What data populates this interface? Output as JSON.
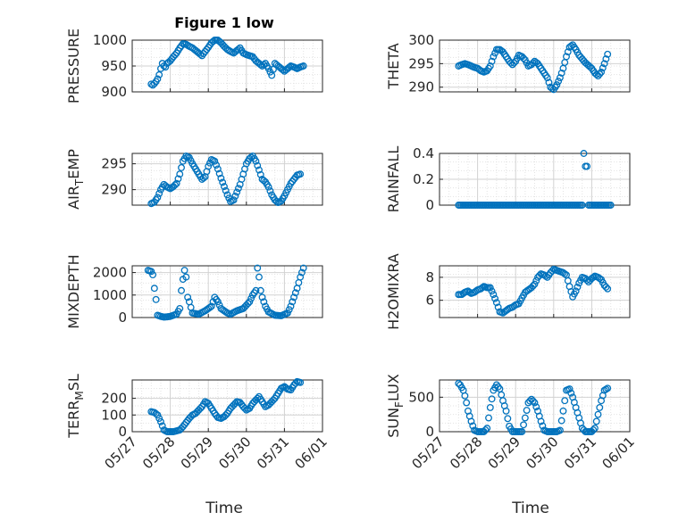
{
  "figure_title": "Figure 1 low",
  "xlabel": "Time",
  "x_ticks": [
    "05/27",
    "05/28",
    "05/29",
    "05/30",
    "05/31",
    "06/01"
  ],
  "marker_color": "#0072BD",
  "chart_data": [
    {
      "type": "scatter",
      "ylabel": "PRESSURE",
      "ylim": [
        900,
        1000
      ],
      "yticks": [
        "900",
        "950",
        "1000"
      ],
      "grid": "on",
      "xlim": [
        "05/27",
        "06/01"
      ],
      "x": [
        "05/27 12:00",
        "05/27 13:00",
        "05/27 14:00",
        "05/27 15:00",
        "05/27 16:00",
        "05/27 17:00",
        "05/27 18:00",
        "05/27 19:00",
        "05/27 20:00",
        "05/27 21:00",
        "05/27 22:00",
        "05/28 00:00",
        "05/28 02:00",
        "05/28 04:00",
        "05/28 06:00",
        "05/28 08:00",
        "05/28 10:00",
        "05/28 12:00",
        "05/28 14:00",
        "05/28 16:00",
        "05/28 18:00",
        "05/28 20:00",
        "05/28 22:00",
        "05/29 00:00",
        "05/29 02:00",
        "05/29 04:00",
        "05/29 06:00",
        "05/29 08:00",
        "05/29 10:00",
        "05/29 12:00",
        "05/29 14:00",
        "05/29 16:00",
        "05/29 18:00",
        "05/29 20:00",
        "05/29 22:00",
        "05/30 00:00",
        "05/30 02:00",
        "05/30 04:00",
        "05/30 06:00",
        "05/30 08:00",
        "05/30 10:00",
        "05/30 12:00",
        "05/30 14:00",
        "05/30 16:00",
        "05/30 18:00",
        "05/30 20:00",
        "05/30 22:00",
        "05/31 00:00",
        "05/31 02:00",
        "05/31 04:00",
        "05/31 06:00",
        "05/31 08:00",
        "05/31 10:00",
        "05/31 12:00"
      ],
      "y": [
        915,
        913,
        916,
        920,
        925,
        933,
        945,
        955,
        950,
        948,
        955,
        960,
        968,
        975,
        985,
        993,
        992,
        988,
        985,
        980,
        975,
        970,
        978,
        986,
        995,
        1000,
        1000,
        995,
        988,
        982,
        978,
        975,
        980,
        985,
        975,
        972,
        970,
        968,
        960,
        955,
        950,
        955,
        945,
        932,
        955,
        950,
        945,
        940,
        945,
        950,
        948,
        945,
        948,
        950
      ]
    },
    {
      "type": "scatter",
      "ylabel": "THETA",
      "ylim": [
        289,
        300
      ],
      "yticks": [
        "290",
        "295",
        "300"
      ],
      "grid": "on",
      "xlim": [
        "05/27",
        "06/01"
      ],
      "x": [
        "05/27 12:00",
        "05/27 14:00",
        "05/27 16:00",
        "05/27 18:00",
        "05/27 20:00",
        "05/27 22:00",
        "05/28 00:00",
        "05/28 02:00",
        "05/28 04:00",
        "05/28 06:00",
        "05/28 08:00",
        "05/28 10:00",
        "05/28 12:00",
        "05/28 14:00",
        "05/28 16:00",
        "05/28 18:00",
        "05/28 20:00",
        "05/28 22:00",
        "05/29 00:00",
        "05/29 02:00",
        "05/29 04:00",
        "05/29 06:00",
        "05/29 08:00",
        "05/29 10:00",
        "05/29 12:00",
        "05/29 14:00",
        "05/29 16:00",
        "05/29 18:00",
        "05/29 20:00",
        "05/29 22:00",
        "05/30 00:00",
        "05/30 02:00",
        "05/30 04:00",
        "05/30 06:00",
        "05/30 08:00",
        "05/30 10:00",
        "05/30 12:00",
        "05/30 14:00",
        "05/30 16:00",
        "05/30 18:00",
        "05/30 20:00",
        "05/30 22:00",
        "05/31 00:00",
        "05/31 02:00",
        "05/31 04:00",
        "05/31 06:00",
        "05/31 08:00",
        "05/31 10:00"
      ],
      "y": [
        294.5,
        294.8,
        295,
        294.8,
        294.5,
        294.2,
        294,
        293.5,
        293.2,
        293.5,
        294.5,
        296.5,
        298,
        298,
        297.5,
        296.5,
        295.5,
        294.8,
        295.5,
        296.8,
        296.5,
        295.8,
        294.5,
        294.8,
        295.5,
        295,
        294,
        293,
        292,
        290,
        289.5,
        290.5,
        292,
        294,
        296.5,
        298.5,
        299,
        298,
        296.8,
        296,
        295.2,
        294.6,
        294,
        293,
        292.4,
        293.2,
        295,
        297
      ]
    },
    {
      "type": "scatter",
      "ylabel": "AIR_TEMP",
      "ylim": [
        287,
        297
      ],
      "yticks": [
        "290",
        "295"
      ],
      "grid": "on",
      "xlim": [
        "05/27",
        "06/01"
      ],
      "x": [
        "05/27 12:00",
        "05/27 14:00",
        "05/27 16:00",
        "05/27 18:00",
        "05/27 20:00",
        "05/27 22:00",
        "05/28 00:00",
        "05/28 02:00",
        "05/28 04:00",
        "05/28 06:00",
        "05/28 08:00",
        "05/28 10:00",
        "05/28 12:00",
        "05/28 14:00",
        "05/28 16:00",
        "05/28 18:00",
        "05/28 20:00",
        "05/28 22:00",
        "05/29 00:00",
        "05/29 02:00",
        "05/29 04:00",
        "05/29 06:00",
        "05/29 08:00",
        "05/29 10:00",
        "05/29 12:00",
        "05/29 14:00",
        "05/29 16:00",
        "05/29 18:00",
        "05/29 20:00",
        "05/29 22:00",
        "05/30 00:00",
        "05/30 02:00",
        "05/30 04:00",
        "05/30 06:00",
        "05/30 08:00",
        "05/30 10:00",
        "05/30 12:00",
        "05/30 14:00",
        "05/30 16:00",
        "05/30 18:00",
        "05/30 20:00",
        "05/30 22:00",
        "05/31 00:00",
        "05/31 02:00",
        "05/31 04:00",
        "05/31 06:00",
        "05/31 08:00",
        "05/31 10:00"
      ],
      "y": [
        287.3,
        287.6,
        288.5,
        290,
        291,
        290.5,
        290.2,
        290.6,
        291.2,
        293,
        295.5,
        296.5,
        296.2,
        295,
        294,
        293,
        292,
        292.5,
        294.5,
        295.8,
        295.5,
        294,
        292.2,
        290.6,
        289,
        287.7,
        288,
        289.5,
        291,
        293,
        295,
        296,
        296.5,
        295.5,
        293.8,
        292,
        291.5,
        290.5,
        289,
        288,
        287.5,
        287.8,
        288.8,
        290,
        291.2,
        292,
        292.8,
        293
      ]
    },
    {
      "type": "scatter",
      "ylabel": "RAINFALL",
      "ylim": [
        0,
        0.4
      ],
      "yticks": [
        "0",
        "0.2",
        "0.4"
      ],
      "grid": "on",
      "xlim": [
        "05/27",
        "06/01"
      ],
      "x": [
        "05/27 12:00",
        "05/27 18:00",
        "05/28 00:00",
        "05/28 06:00",
        "05/28 12:00",
        "05/28 18:00",
        "05/29 00:00",
        "05/29 06:00",
        "05/29 12:00",
        "05/29 18:00",
        "05/30 00:00",
        "05/30 06:00",
        "05/30 12:00",
        "05/30 18:00",
        "05/30 19:00",
        "05/30 20:00",
        "05/31 00:00",
        "05/31 06:00",
        "05/31 12:00"
      ],
      "y": [
        0,
        0,
        0,
        0,
        0,
        0,
        0,
        0,
        0,
        0,
        0,
        0,
        0,
        0,
        0.4,
        0.3,
        0,
        0,
        0
      ]
    },
    {
      "type": "scatter",
      "ylabel": "MIXDEPTH",
      "ylim": [
        0,
        2300
      ],
      "yticks": [
        "0",
        "1000",
        "2000"
      ],
      "grid": "on",
      "xlim": [
        "05/27",
        "06/01"
      ],
      "x": [
        "05/27 10:00",
        "05/27 12:00",
        "05/27 13:00",
        "05/27 14:00",
        "05/27 15:00",
        "05/27 16:00",
        "05/27 18:00",
        "05/27 20:00",
        "05/27 22:00",
        "05/28 00:00",
        "05/28 02:00",
        "05/28 04:00",
        "05/28 06:00",
        "05/28 07:00",
        "05/28 08:00",
        "05/28 09:00",
        "05/28 10:00",
        "05/28 11:00",
        "05/28 12:00",
        "05/28 14:00",
        "05/28 18:00",
        "05/28 22:00",
        "05/29 02:00",
        "05/29 04:00",
        "05/29 06:00",
        "05/29 08:00",
        "05/29 10:00",
        "05/29 12:00",
        "05/29 14:00",
        "05/29 18:00",
        "05/29 22:00",
        "05/30 02:00",
        "05/30 04:00",
        "05/30 06:00",
        "05/30 07:00",
        "05/30 08:00",
        "05/30 09:00",
        "05/30 10:00",
        "05/30 12:00",
        "05/30 14:00",
        "05/30 18:00",
        "05/30 22:00",
        "05/31 02:00",
        "05/31 04:00",
        "05/31 06:00",
        "05/31 08:00",
        "05/31 10:00",
        "05/31 12:00"
      ],
      "y": [
        2100,
        2050,
        1900,
        1300,
        800,
        100,
        50,
        20,
        30,
        50,
        100,
        150,
        400,
        1200,
        1700,
        2100,
        1800,
        900,
        700,
        200,
        150,
        300,
        500,
        900,
        700,
        400,
        300,
        200,
        150,
        300,
        400,
        700,
        1000,
        1200,
        2200,
        1800,
        1200,
        900,
        500,
        250,
        100,
        80,
        200,
        500,
        900,
        1300,
        1800,
        2200
      ]
    },
    {
      "type": "scatter",
      "ylabel": "H2OMIXRA",
      "ylim": [
        4.5,
        9
      ],
      "yticks": [
        "6",
        "8"
      ],
      "grid": "on",
      "xlim": [
        "05/27",
        "06/01"
      ],
      "x": [
        "05/27 12:00",
        "05/27 14:00",
        "05/27 16:00",
        "05/27 18:00",
        "05/27 20:00",
        "05/27 22:00",
        "05/28 00:00",
        "05/28 02:00",
        "05/28 04:00",
        "05/28 06:00",
        "05/28 08:00",
        "05/28 10:00",
        "05/28 12:00",
        "05/28 14:00",
        "05/28 16:00",
        "05/28 18:00",
        "05/28 20:00",
        "05/28 22:00",
        "05/29 00:00",
        "05/29 02:00",
        "05/29 04:00",
        "05/29 06:00",
        "05/29 08:00",
        "05/29 10:00",
        "05/29 12:00",
        "05/29 14:00",
        "05/29 16:00",
        "05/29 18:00",
        "05/29 20:00",
        "05/29 22:00",
        "05/30 00:00",
        "05/30 02:00",
        "05/30 04:00",
        "05/30 06:00",
        "05/30 08:00",
        "05/30 10:00",
        "05/30 12:00",
        "05/30 14:00",
        "05/30 16:00",
        "05/30 18:00",
        "05/30 20:00",
        "05/30 22:00",
        "05/31 00:00",
        "05/31 02:00",
        "05/31 04:00",
        "05/31 06:00",
        "05/31 08:00",
        "05/31 10:00"
      ],
      "y": [
        6.5,
        6.5,
        6.7,
        6.8,
        6.6,
        6.7,
        6.9,
        7.0,
        7.2,
        7.1,
        7.1,
        6.5,
        5.8,
        5.0,
        4.9,
        5.1,
        5.3,
        5.4,
        5.6,
        5.7,
        6.2,
        6.7,
        6.9,
        7.1,
        7.4,
        8.0,
        8.3,
        8.2,
        8.0,
        8.4,
        8.7,
        8.6,
        8.5,
        8.4,
        8.2,
        7.2,
        6.3,
        6.8,
        7.5,
        8.0,
        7.9,
        7.6,
        7.9,
        8.1,
        8.0,
        7.8,
        7.3,
        7.0
      ]
    },
    {
      "type": "scatter",
      "ylabel": "TERR_MSL",
      "ylim": [
        0,
        310
      ],
      "yticks": [
        "0",
        "100",
        "200"
      ],
      "grid": "on",
      "xlim": [
        "05/27",
        "06/01"
      ],
      "x": [
        "05/27 12:00",
        "05/27 14:00",
        "05/27 16:00",
        "05/27 18:00",
        "05/27 20:00",
        "05/27 22:00",
        "05/28 00:00",
        "05/28 02:00",
        "05/28 04:00",
        "05/28 06:00",
        "05/28 08:00",
        "05/28 10:00",
        "05/28 12:00",
        "05/28 14:00",
        "05/28 16:00",
        "05/28 18:00",
        "05/28 20:00",
        "05/28 22:00",
        "05/29 00:00",
        "05/29 02:00",
        "05/29 04:00",
        "05/29 06:00",
        "05/29 08:00",
        "05/29 10:00",
        "05/29 12:00",
        "05/29 14:00",
        "05/29 16:00",
        "05/29 18:00",
        "05/29 20:00",
        "05/29 22:00",
        "05/30 00:00",
        "05/30 02:00",
        "05/30 04:00",
        "05/30 06:00",
        "05/30 08:00",
        "05/30 10:00",
        "05/30 12:00",
        "05/30 14:00",
        "05/30 16:00",
        "05/30 18:00",
        "05/30 20:00",
        "05/30 22:00",
        "05/31 00:00",
        "05/31 02:00",
        "05/31 04:00",
        "05/31 06:00",
        "05/31 08:00",
        "05/31 10:00"
      ],
      "y": [
        120,
        115,
        100,
        60,
        10,
        0,
        0,
        0,
        5,
        10,
        30,
        55,
        80,
        100,
        110,
        130,
        150,
        180,
        170,
        140,
        110,
        85,
        80,
        90,
        110,
        140,
        160,
        180,
        175,
        150,
        130,
        140,
        170,
        190,
        210,
        180,
        150,
        160,
        180,
        200,
        230,
        260,
        270,
        255,
        250,
        280,
        300,
        295
      ]
    },
    {
      "type": "scatter",
      "ylabel": "SUN_FLUX",
      "ylim": [
        0,
        750
      ],
      "yticks": [
        "0",
        "500"
      ],
      "grid": "on",
      "xlim": [
        "05/27",
        "06/01"
      ],
      "x": [
        "05/27 12:00",
        "05/27 13:00",
        "05/27 14:00",
        "05/27 15:00",
        "05/27 16:00",
        "05/27 17:00",
        "05/27 18:00",
        "05/27 20:00",
        "05/27 22:00",
        "05/28 00:00",
        "05/28 02:00",
        "05/28 04:00",
        "05/28 06:00",
        "05/28 08:00",
        "05/28 10:00",
        "05/28 12:00",
        "05/28 14:00",
        "05/28 16:00",
        "05/28 18:00",
        "05/28 20:00",
        "05/28 22:00",
        "05/29 00:00",
        "05/29 02:00",
        "05/29 04:00",
        "05/29 06:00",
        "05/29 08:00",
        "05/29 10:00",
        "05/29 12:00",
        "05/29 14:00",
        "05/29 16:00",
        "05/29 18:00",
        "05/29 20:00",
        "05/29 22:00",
        "05/30 00:00",
        "05/30 02:00",
        "05/30 04:00",
        "05/30 06:00",
        "05/30 08:00",
        "05/30 10:00",
        "05/30 12:00",
        "05/30 14:00",
        "05/30 16:00",
        "05/30 18:00",
        "05/30 20:00",
        "05/30 22:00",
        "05/31 00:00",
        "05/31 02:00",
        "05/31 04:00",
        "05/31 06:00",
        "05/31 08:00",
        "05/31 10:00"
      ],
      "y": [
        700,
        680,
        640,
        600,
        520,
        420,
        300,
        150,
        20,
        0,
        0,
        0,
        50,
        350,
        600,
        680,
        620,
        450,
        300,
        80,
        0,
        0,
        0,
        0,
        200,
        420,
        470,
        420,
        300,
        150,
        20,
        0,
        0,
        0,
        0,
        20,
        300,
        600,
        620,
        500,
        350,
        200,
        50,
        0,
        0,
        0,
        50,
        250,
        450,
        600,
        630
      ]
    }
  ]
}
